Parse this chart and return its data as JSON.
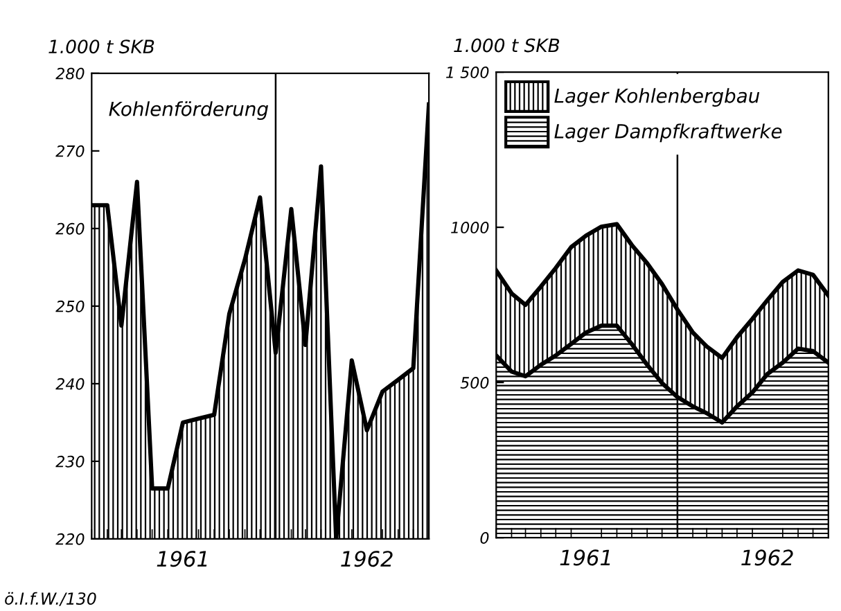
{
  "chart_data": [
    {
      "type": "area",
      "ylabel": "1.000 t SKB",
      "x": [
        "1961-01",
        "1961-02",
        "1961-03",
        "1961-04",
        "1961-05",
        "1961-06",
        "1961-07",
        "1961-08",
        "1961-09",
        "1961-10",
        "1961-11",
        "1961-12",
        "1962-01",
        "1962-02",
        "1962-03",
        "1962-04",
        "1962-05",
        "1962-06",
        "1962-07",
        "1962-08",
        "1962-09",
        "1962-10",
        "1962-11"
      ],
      "series": [
        {
          "name": "Kohlenförderung",
          "color": "#000000",
          "values": [
            263,
            263,
            247.5,
            266,
            226.5,
            226.5,
            235,
            235.5,
            236,
            249,
            256,
            264,
            244,
            262.5,
            245,
            268,
            220,
            243,
            234,
            239,
            240.5,
            242,
            276
          ]
        }
      ],
      "xlim": [
        "1961-01",
        "1962-11"
      ],
      "ylim": [
        220,
        280
      ],
      "yticks": [
        220,
        230,
        240,
        250,
        260,
        270,
        280
      ],
      "xticks": [
        {
          "value": "1961-01",
          "label": null
        },
        {
          "value": "1961-02",
          "label": null
        },
        {
          "value": "1961-03",
          "label": null
        },
        {
          "value": "1961-04",
          "label": null
        },
        {
          "value": "1961-05",
          "label": null
        },
        {
          "value": "1961-06",
          "label": null
        },
        {
          "value": "1961-07",
          "label": "1961"
        },
        {
          "value": "1961-08",
          "label": null
        },
        {
          "value": "1961-09",
          "label": null
        },
        {
          "value": "1961-10",
          "label": null
        },
        {
          "value": "1961-11",
          "label": null
        },
        {
          "value": "1961-12",
          "label": null
        },
        {
          "value": "1962-01",
          "label": null
        },
        {
          "value": "1962-02",
          "label": null
        },
        {
          "value": "1962-03",
          "label": null
        },
        {
          "value": "1962-04",
          "label": null
        },
        {
          "value": "1962-05",
          "label": null
        },
        {
          "value": "1962-06",
          "label": null
        },
        {
          "value": "1962-07",
          "label": "1962"
        },
        {
          "value": "1962-08",
          "label": null
        },
        {
          "value": "1962-09",
          "label": null
        },
        {
          "value": "1962-10",
          "label": null
        }
      ],
      "ref_lines": [
        {
          "axis": "x",
          "value": "1962-01",
          "label": null,
          "color": "#000000"
        }
      ],
      "annotations": [
        "ö.I.f.W./130"
      ],
      "grid": false,
      "legend": false
    },
    {
      "type": "area",
      "stacked": true,
      "ylabel": "1.000 t SKB",
      "x": [
        "1961-01",
        "1961-02",
        "1961-03",
        "1961-04",
        "1961-05",
        "1961-06",
        "1961-07",
        "1961-08",
        "1961-09",
        "1961-10",
        "1961-11",
        "1961-12",
        "1962-01",
        "1962-02",
        "1962-03",
        "1962-04",
        "1962-05",
        "1962-06",
        "1962-07",
        "1962-08",
        "1962-09",
        "1962-10",
        "1962-11"
      ],
      "series": [
        {
          "name": "Lager Dampfkraftwerke",
          "color": "#000000",
          "values": [
            587,
            535,
            520,
            557,
            587,
            624,
            661,
            683,
            683,
            624,
            557,
            498,
            453,
            423,
            401,
            371,
            423,
            468,
            527,
            564,
            609,
            601,
            564
          ]
        },
        {
          "name": "Lager Kohlenbergbau",
          "color": "#000000",
          "values": [
            274,
            252,
            230,
            252,
            282,
            312,
            312,
            319,
            327,
            319,
            327,
            319,
            282,
            238,
            215,
            208,
            223,
            237,
            238,
            260,
            252,
            246,
            216
          ]
        }
      ],
      "xlim": [
        "1961-01",
        "1962-11"
      ],
      "ylim": [
        0,
        1500
      ],
      "yticks": [
        0,
        500,
        1000,
        {
          "value": 1500,
          "label": "1 500"
        }
      ],
      "xticks": [
        {
          "value": "1961-01",
          "label": null
        },
        {
          "value": "1961-02",
          "label": null
        },
        {
          "value": "1961-03",
          "label": null
        },
        {
          "value": "1961-04",
          "label": null
        },
        {
          "value": "1961-05",
          "label": null
        },
        {
          "value": "1961-06",
          "label": null
        },
        {
          "value": "1961-07",
          "label": "1961"
        },
        {
          "value": "1961-08",
          "label": null
        },
        {
          "value": "1961-09",
          "label": null
        },
        {
          "value": "1961-10",
          "label": null
        },
        {
          "value": "1961-11",
          "label": null
        },
        {
          "value": "1961-12",
          "label": null
        },
        {
          "value": "1962-01",
          "label": null
        },
        {
          "value": "1962-02",
          "label": null
        },
        {
          "value": "1962-03",
          "label": null
        },
        {
          "value": "1962-04",
          "label": null
        },
        {
          "value": "1962-05",
          "label": null
        },
        {
          "value": "1962-06",
          "label": null
        },
        {
          "value": "1962-07",
          "label": "1962"
        },
        {
          "value": "1962-08",
          "label": null
        },
        {
          "value": "1962-09",
          "label": null
        },
        {
          "value": "1962-10",
          "label": null
        }
      ],
      "ref_lines": [
        {
          "axis": "x",
          "value": "1962-01",
          "label": null,
          "color": "#000000"
        }
      ],
      "grid": false,
      "legend": "top left"
    }
  ]
}
